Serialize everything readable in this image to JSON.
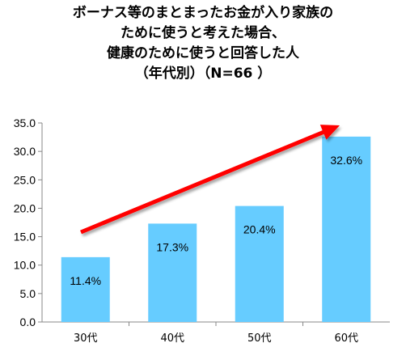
{
  "chart_data": {
    "type": "bar",
    "title_lines": [
      "ボーナス等のまとまったお金が入り家族の",
      "ために使うと考えた場合、",
      "健康のために使うと回答した人",
      "（年代別）（N=66 ）"
    ],
    "categories": [
      "30代",
      "40代",
      "50代",
      "60代"
    ],
    "values": [
      11.4,
      17.3,
      20.4,
      32.6
    ],
    "data_labels": [
      "11.4%",
      "17.3%",
      "20.4%",
      "32.6%"
    ],
    "y_ticks": [
      "0.0",
      "5.0",
      "10.0",
      "15.0",
      "20.0",
      "25.0",
      "30.0",
      "35.0"
    ],
    "ylim": [
      0,
      35
    ],
    "xlabel": "",
    "ylabel": "",
    "grid": false,
    "legend": "none",
    "annotation": "red upward trend arrow",
    "colors": {
      "bar": "#66ccff",
      "arrow": "#ff0000",
      "axis": "#888888"
    }
  }
}
